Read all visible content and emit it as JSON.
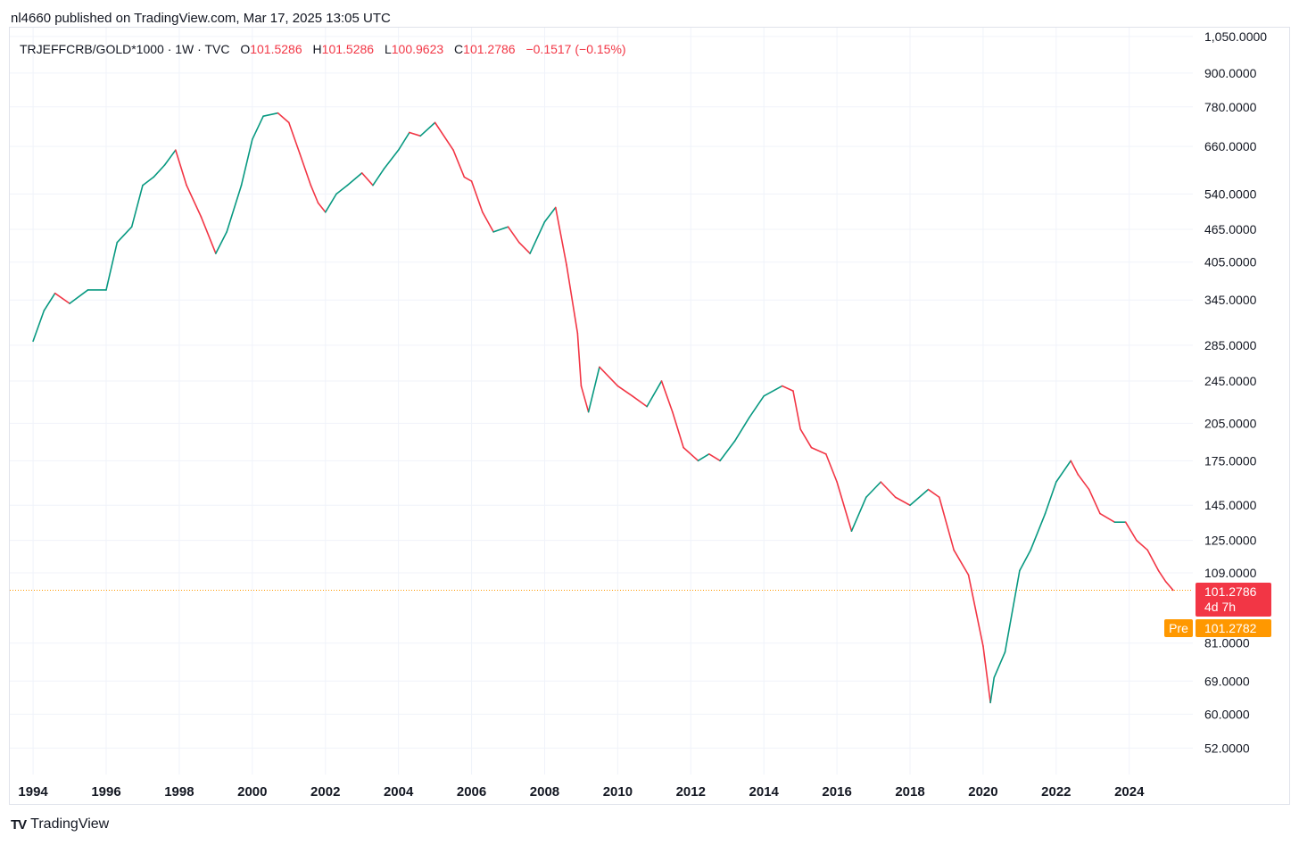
{
  "header": {
    "publisher": "nl4660 published on TradingView.com, Mar 17, 2025 13:05 UTC"
  },
  "legend": {
    "symbol": "TRJEFFCRB/GOLD*1000 · 1W · TVC",
    "o_label": "O",
    "o_value": "101.5286",
    "h_label": "H",
    "h_value": "101.5286",
    "l_label": "L",
    "l_value": "100.9623",
    "c_label": "C",
    "c_value": "101.2786",
    "change": "−0.1517 (−0.15%)"
  },
  "price_tags": {
    "last_value": "101.2786",
    "countdown": "4d 7h",
    "pre_label": "Pre",
    "pre_value": "101.2782"
  },
  "brand": {
    "logo": "TV",
    "name": "TradingView"
  },
  "colors": {
    "up": "#089981",
    "down": "#f23645",
    "pre": "#ff9800",
    "grid": "#f0f3fa"
  },
  "chart_data": {
    "type": "line",
    "scale": "log",
    "title": "TRJEFFCRB/GOLD*1000 · 1W · TVC",
    "xlabel": "",
    "ylabel": "",
    "xlim": [
      1993.9,
      2025.3
    ],
    "ylim": [
      46.5,
      1090
    ],
    "x_ticks": [
      "1994",
      "1996",
      "1998",
      "2000",
      "2002",
      "2004",
      "2006",
      "2008",
      "2010",
      "2012",
      "2014",
      "2016",
      "2018",
      "2020",
      "2022",
      "2024"
    ],
    "y_ticks": [
      "1,050.0000",
      "900.0000",
      "780.0000",
      "660.0000",
      "540.0000",
      "465.0000",
      "405.0000",
      "345.0000",
      "285.0000",
      "245.0000",
      "205.0000",
      "175.0000",
      "145.0000",
      "125.0000",
      "109.0000",
      "81.0000",
      "69.0000",
      "60.0000",
      "52.0000"
    ],
    "last_price": 101.2786,
    "series": [
      {
        "name": "TRJEFFCRB/GOLD*1000",
        "x": [
          1994.0,
          1994.3,
          1994.6,
          1995.0,
          1995.5,
          1996.0,
          1996.3,
          1996.7,
          1997.0,
          1997.3,
          1997.6,
          1997.9,
          1998.2,
          1998.6,
          1999.0,
          1999.3,
          1999.7,
          2000.0,
          2000.3,
          2000.7,
          2001.0,
          2001.3,
          2001.6,
          2001.8,
          2002.0,
          2002.3,
          2002.6,
          2003.0,
          2003.3,
          2003.6,
          2004.0,
          2004.3,
          2004.6,
          2005.0,
          2005.5,
          2005.8,
          2006.0,
          2006.3,
          2006.6,
          2007.0,
          2007.3,
          2007.6,
          2008.0,
          2008.3,
          2008.6,
          2008.9,
          2009.0,
          2009.2,
          2009.5,
          2010.0,
          2010.4,
          2010.8,
          2011.2,
          2011.5,
          2011.8,
          2012.2,
          2012.5,
          2012.8,
          2013.2,
          2013.6,
          2014.0,
          2014.5,
          2014.8,
          2015.0,
          2015.3,
          2015.7,
          2016.0,
          2016.4,
          2016.8,
          2017.2,
          2017.6,
          2018.0,
          2018.5,
          2018.8,
          2019.2,
          2019.6,
          2020.0,
          2020.2,
          2020.3,
          2020.6,
          2021.0,
          2021.3,
          2021.7,
          2022.0,
          2022.4,
          2022.6,
          2022.9,
          2023.2,
          2023.6,
          2023.9,
          2024.2,
          2024.5,
          2024.8,
          2025.0,
          2025.2
        ],
        "values": [
          290,
          330,
          355,
          340,
          360,
          360,
          440,
          470,
          560,
          580,
          610,
          650,
          560,
          490,
          420,
          460,
          560,
          680,
          750,
          760,
          730,
          640,
          560,
          520,
          500,
          540,
          560,
          590,
          560,
          600,
          650,
          700,
          690,
          730,
          650,
          580,
          570,
          500,
          460,
          470,
          440,
          420,
          480,
          510,
          400,
          300,
          240,
          215,
          260,
          240,
          230,
          220,
          245,
          215,
          185,
          175,
          180,
          175,
          190,
          210,
          230,
          240,
          235,
          200,
          185,
          180,
          160,
          130,
          150,
          160,
          150,
          145,
          155,
          150,
          120,
          108,
          80,
          63,
          70,
          78,
          110,
          120,
          140,
          160,
          175,
          165,
          155,
          140,
          135,
          135,
          125,
          120,
          110,
          105,
          101.28
        ]
      }
    ]
  }
}
